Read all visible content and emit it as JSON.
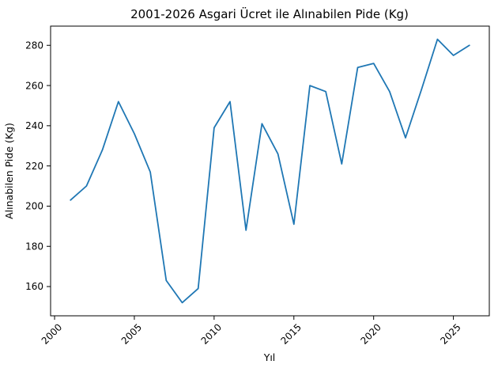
{
  "figure": {
    "background": "#ffffff",
    "spine_color": "#000000",
    "text_color": "#000000"
  },
  "chart_data": {
    "type": "line",
    "title": "2001-2026 Asgari Ücret ile Alınabilen Pide (Kg)",
    "xlabel": "Yıl",
    "ylabel": "Alınabilen Pide (Kg)",
    "x": [
      2001,
      2002,
      2003,
      2004,
      2005,
      2006,
      2007,
      2008,
      2009,
      2010,
      2011,
      2012,
      2013,
      2014,
      2015,
      2016,
      2017,
      2018,
      2019,
      2020,
      2021,
      2022,
      2023,
      2024,
      2025,
      2026
    ],
    "series": [
      {
        "name": "Alınabilen Pide (Kg)",
        "color": "#1f77b4",
        "values": [
          203,
          210,
          228,
          252,
          236,
          217,
          163,
          152,
          159,
          239,
          252,
          188,
          241,
          226,
          191,
          260,
          257,
          221,
          269,
          271,
          257,
          234,
          258,
          283,
          275,
          280
        ]
      }
    ],
    "xlim": [
      1999.75,
      2027.25
    ],
    "ylim": [
      145.45,
      289.55
    ],
    "xticks": [
      2000,
      2005,
      2010,
      2015,
      2020,
      2025
    ],
    "yticks": [
      160,
      180,
      200,
      220,
      240,
      260,
      280
    ],
    "xtick_rotation": 45,
    "grid": false,
    "legend": "none"
  }
}
